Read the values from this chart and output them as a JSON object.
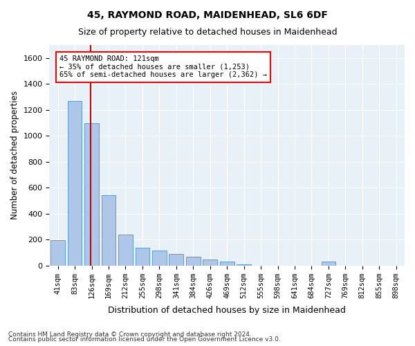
{
  "title1": "45, RAYMOND ROAD, MAIDENHEAD, SL6 6DF",
  "title2": "Size of property relative to detached houses in Maidenhead",
  "xlabel": "Distribution of detached houses by size in Maidenhead",
  "ylabel": "Number of detached properties",
  "footnote1": "Contains HM Land Registry data © Crown copyright and database right 2024.",
  "footnote2": "Contains public sector information licensed under the Open Government Licence v3.0.",
  "annotation_line1": "45 RAYMOND ROAD: 121sqm",
  "annotation_line2": "← 35% of detached houses are smaller (1,253)",
  "annotation_line3": "65% of semi-detached houses are larger (2,362) →",
  "bar_labels": [
    "41sqm",
    "83sqm",
    "126sqm",
    "169sqm",
    "212sqm",
    "255sqm",
    "298sqm",
    "341sqm",
    "384sqm",
    "426sqm",
    "469sqm",
    "512sqm",
    "555sqm",
    "598sqm",
    "641sqm",
    "684sqm",
    "727sqm",
    "769sqm",
    "812sqm",
    "855sqm",
    "898sqm"
  ],
  "bar_values": [
    195,
    1270,
    1095,
    540,
    240,
    135,
    115,
    90,
    65,
    45,
    30,
    10,
    0,
    0,
    0,
    0,
    28,
    0,
    0,
    0,
    0
  ],
  "bar_color": "#aec6e8",
  "bar_edge_color": "#5b9bd5",
  "vline_color": "#cc0000",
  "bg_color": "#e8f0f8",
  "ylim": [
    0,
    1700
  ],
  "yticks": [
    0,
    200,
    400,
    600,
    800,
    1000,
    1200,
    1400,
    1600
  ]
}
